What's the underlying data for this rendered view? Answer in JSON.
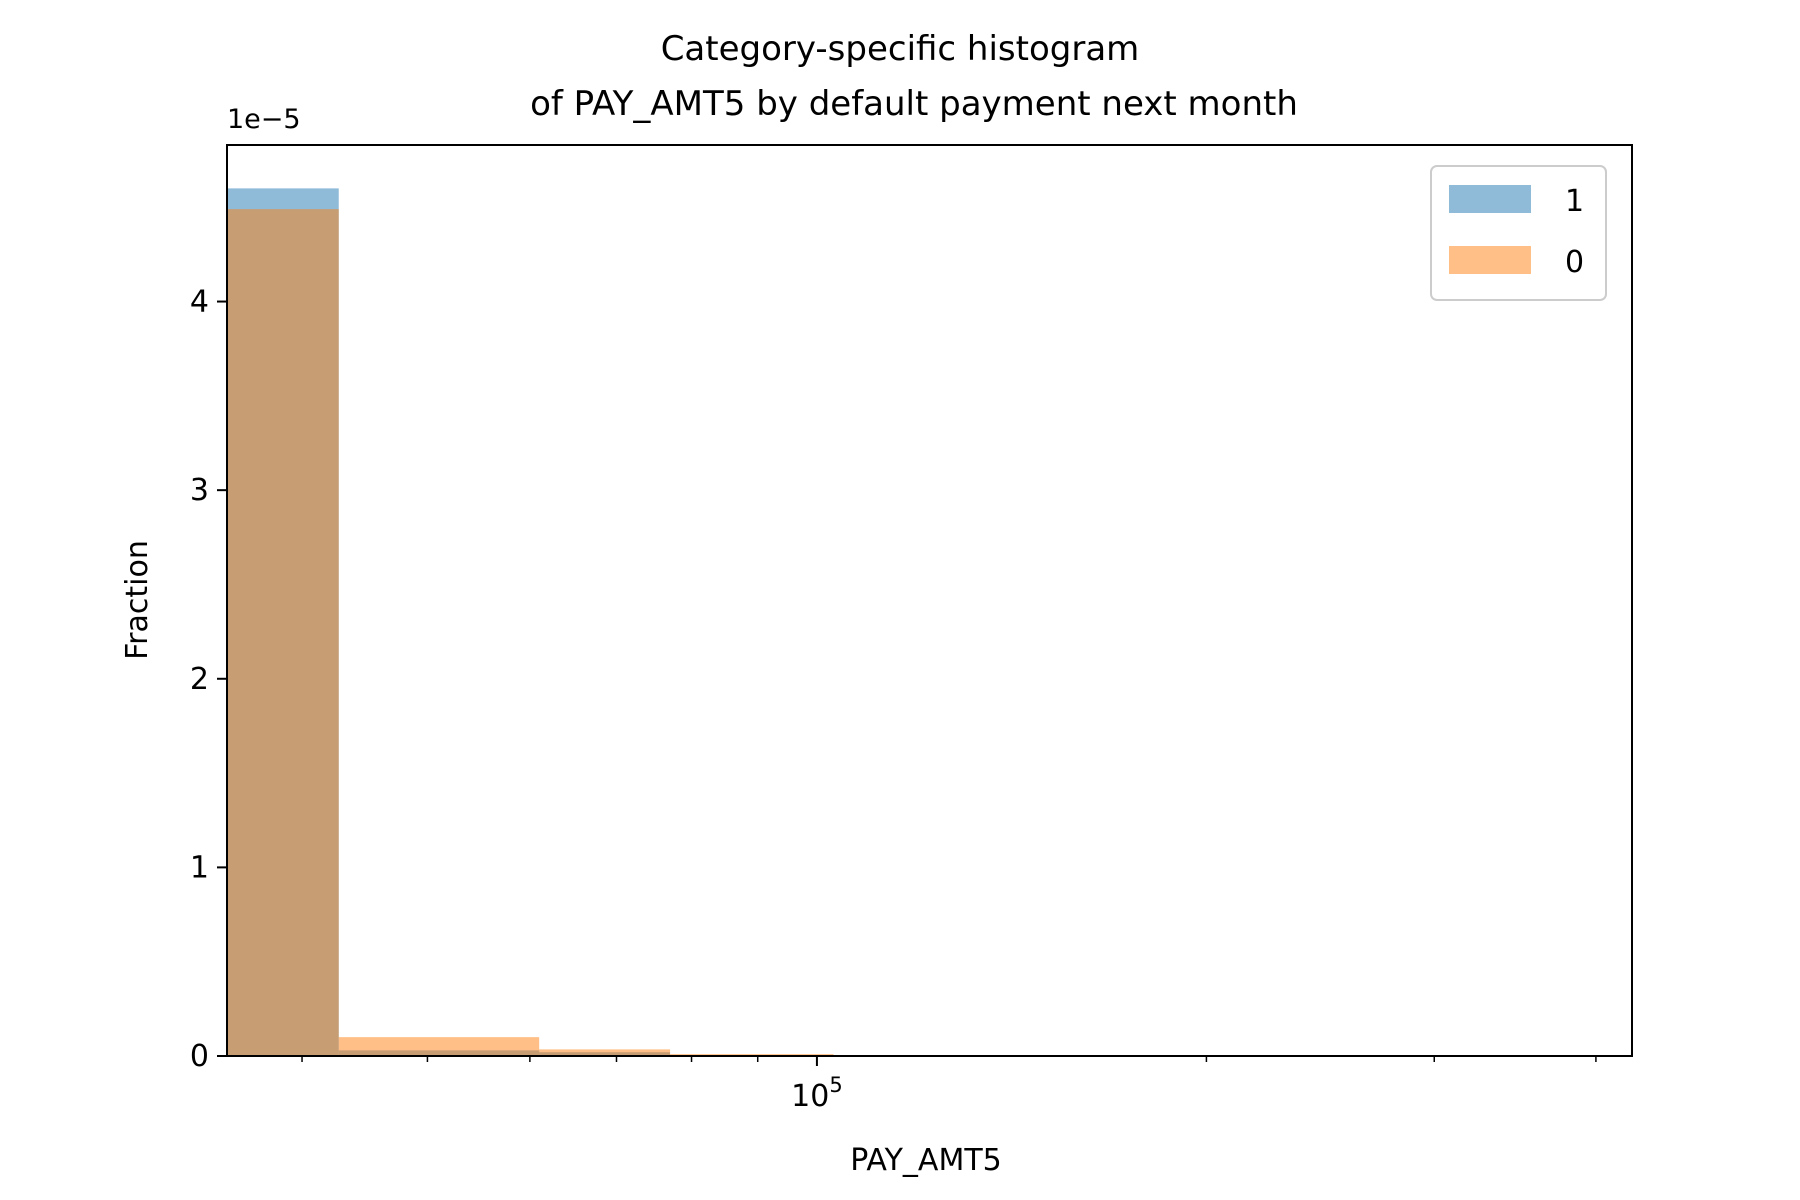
{
  "chart_data": {
    "type": "bar",
    "title_line1": "Category-specific histogram",
    "title_line2": "of PAY_AMT5 by default payment next month",
    "xlabel": "PAY_AMT5",
    "ylabel": "Fraction",
    "y_scale_label": "1e−5",
    "x_scale": "log",
    "xlim": [
      35000,
      426529
    ],
    "ylim": [
      0,
      4.83
    ],
    "y_ticks": [
      0,
      1,
      2,
      3,
      4
    ],
    "y_tick_labels": [
      "0",
      "1",
      "2",
      "3",
      "4"
    ],
    "x_major_ticks": [
      100000
    ],
    "x_major_tick_labels": [
      "10^5"
    ],
    "x_minor_ticks": [
      40000,
      50000,
      60000,
      70000,
      80000,
      90000,
      200000,
      300000,
      400000
    ],
    "grid": false,
    "legend_position": "top-right",
    "series": [
      {
        "name": "1",
        "color": "#1f77b4",
        "bins": [
          {
            "x0": 35000,
            "x1": 42700,
            "y": 4.6
          },
          {
            "x0": 42700,
            "x1": 61000,
            "y": 0.03
          },
          {
            "x0": 61000,
            "x1": 77000,
            "y": 0.02
          },
          {
            "x0": 77000,
            "x1": 103000,
            "y": 0.005
          }
        ]
      },
      {
        "name": "0",
        "color": "#ff7f0e",
        "bins": [
          {
            "x0": 35000,
            "x1": 42700,
            "y": 4.49
          },
          {
            "x0": 42700,
            "x1": 61000,
            "y": 0.1
          },
          {
            "x0": 61000,
            "x1": 77000,
            "y": 0.035
          },
          {
            "x0": 77000,
            "x1": 103000,
            "y": 0.01
          }
        ]
      }
    ],
    "bar_opacity": 0.5
  }
}
